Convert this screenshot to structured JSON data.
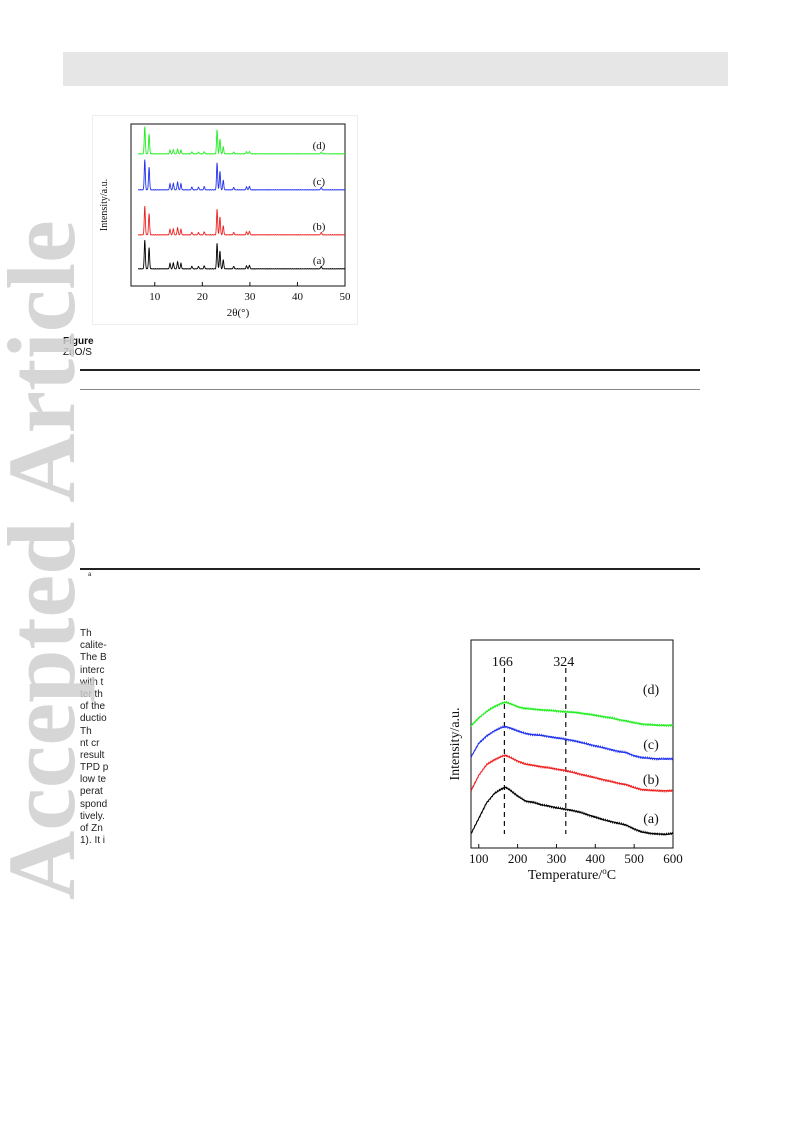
{
  "watermark": "Accepted Article",
  "figure_caption": {
    "label": "Figure",
    "line2": "ZnO/S"
  },
  "footnote_mark": "a",
  "text_fragments": [
    "Th",
    "calite-",
    "The B",
    "interc",
    "with t",
    "ter th",
    "of the",
    "ductio",
    "Th",
    "nt cr",
    "result",
    "TPD p",
    "low te",
    "perat",
    "spond",
    "tively.",
    "of Zn",
    "1). It i"
  ],
  "chart_data": [
    {
      "type": "line",
      "title": "",
      "xlabel": "2θ(°)",
      "ylabel": "Intensity/a.u.",
      "xlim": [
        5,
        50
      ],
      "xticks": [
        "10",
        "20",
        "30",
        "40",
        "50"
      ],
      "grid": false,
      "series": [
        {
          "name": "(a)",
          "color": "#000000",
          "peaks": [
            [
              7.9,
              0.95
            ],
            [
              8.8,
              0.7
            ],
            [
              13.2,
              0.18
            ],
            [
              13.9,
              0.2
            ],
            [
              14.8,
              0.24
            ],
            [
              15.5,
              0.18
            ],
            [
              17.8,
              0.08
            ],
            [
              19.2,
              0.08
            ],
            [
              20.4,
              0.1
            ],
            [
              23.1,
              0.85
            ],
            [
              23.7,
              0.6
            ],
            [
              24.4,
              0.3
            ],
            [
              26.6,
              0.08
            ],
            [
              29.3,
              0.1
            ],
            [
              29.9,
              0.12
            ],
            [
              45.0,
              0.08
            ]
          ]
        },
        {
          "name": "(b)",
          "color": "#ee2222",
          "peaks": [
            [
              7.9,
              0.95
            ],
            [
              8.8,
              0.7
            ],
            [
              13.2,
              0.18
            ],
            [
              13.9,
              0.2
            ],
            [
              14.8,
              0.24
            ],
            [
              15.5,
              0.18
            ],
            [
              17.8,
              0.08
            ],
            [
              19.2,
              0.08
            ],
            [
              20.4,
              0.1
            ],
            [
              23.1,
              0.85
            ],
            [
              23.7,
              0.6
            ],
            [
              24.4,
              0.3
            ],
            [
              26.6,
              0.08
            ],
            [
              29.3,
              0.1
            ],
            [
              29.9,
              0.12
            ],
            [
              45.0,
              0.08
            ]
          ]
        },
        {
          "name": "(c)",
          "color": "#2233ee",
          "peaks": [
            [
              7.9,
              1.0
            ],
            [
              8.8,
              0.75
            ],
            [
              13.2,
              0.2
            ],
            [
              13.9,
              0.22
            ],
            [
              14.8,
              0.26
            ],
            [
              15.5,
              0.2
            ],
            [
              17.8,
              0.09
            ],
            [
              19.2,
              0.09
            ],
            [
              20.4,
              0.11
            ],
            [
              23.1,
              0.9
            ],
            [
              23.7,
              0.62
            ],
            [
              24.4,
              0.32
            ],
            [
              26.6,
              0.08
            ],
            [
              29.3,
              0.1
            ],
            [
              29.9,
              0.12
            ],
            [
              45.0,
              0.08
            ]
          ]
        },
        {
          "name": "(d)",
          "color": "#22ee22",
          "peaks": [
            [
              7.9,
              0.9
            ],
            [
              8.8,
              0.65
            ],
            [
              13.2,
              0.12
            ],
            [
              13.9,
              0.14
            ],
            [
              14.8,
              0.16
            ],
            [
              15.5,
              0.12
            ],
            [
              17.8,
              0.06
            ],
            [
              19.2,
              0.06
            ],
            [
              20.4,
              0.07
            ],
            [
              23.1,
              0.8
            ],
            [
              23.7,
              0.5
            ],
            [
              24.4,
              0.22
            ],
            [
              26.6,
              0.06
            ],
            [
              29.3,
              0.07
            ],
            [
              29.9,
              0.08
            ],
            [
              45.0,
              0.06
            ]
          ]
        }
      ]
    },
    {
      "type": "line",
      "title": "",
      "xlabel": "Temperature/°C",
      "xlabel_unit_sup": "o",
      "ylabel": "Intensity/a.u.",
      "xlim": [
        80,
        600
      ],
      "xticks": [
        "100",
        "200",
        "300",
        "400",
        "500",
        "600"
      ],
      "grid": false,
      "annotations": [
        {
          "x": 166,
          "label": "166"
        },
        {
          "x": 324,
          "label": "324"
        }
      ],
      "series": [
        {
          "name": "(a)",
          "color": "#000000",
          "x": [
            80,
            100,
            120,
            140,
            160,
            170,
            180,
            200,
            220,
            240,
            260,
            280,
            300,
            320,
            340,
            360,
            380,
            400,
            420,
            440,
            460,
            480,
            500,
            520,
            540,
            560,
            580,
            600
          ],
          "y": [
            0.05,
            0.3,
            0.55,
            0.7,
            0.78,
            0.8,
            0.76,
            0.66,
            0.58,
            0.56,
            0.52,
            0.5,
            0.47,
            0.45,
            0.43,
            0.4,
            0.36,
            0.32,
            0.28,
            0.25,
            0.22,
            0.19,
            0.13,
            0.08,
            0.06,
            0.05,
            0.04,
            0.06
          ]
        },
        {
          "name": "(b)",
          "color": "#ee2222",
          "x": [
            80,
            100,
            120,
            140,
            160,
            170,
            180,
            200,
            220,
            240,
            260,
            280,
            300,
            320,
            340,
            360,
            380,
            400,
            420,
            440,
            460,
            480,
            500,
            520,
            540,
            560,
            580,
            600
          ],
          "y": [
            0.1,
            0.35,
            0.52,
            0.6,
            0.66,
            0.67,
            0.64,
            0.58,
            0.53,
            0.51,
            0.49,
            0.47,
            0.45,
            0.43,
            0.4,
            0.37,
            0.34,
            0.31,
            0.28,
            0.25,
            0.22,
            0.2,
            0.15,
            0.12,
            0.11,
            0.1,
            0.1,
            0.1
          ]
        },
        {
          "name": "(c)",
          "color": "#2233ee",
          "x": [
            80,
            100,
            120,
            140,
            160,
            170,
            180,
            200,
            220,
            240,
            260,
            280,
            300,
            320,
            340,
            360,
            380,
            400,
            420,
            440,
            460,
            480,
            500,
            520,
            540,
            560,
            580,
            600
          ],
          "y": [
            0.08,
            0.3,
            0.42,
            0.5,
            0.56,
            0.57,
            0.55,
            0.5,
            0.46,
            0.44,
            0.43,
            0.41,
            0.39,
            0.37,
            0.35,
            0.32,
            0.29,
            0.26,
            0.23,
            0.2,
            0.17,
            0.15,
            0.1,
            0.07,
            0.06,
            0.05,
            0.05,
            0.05
          ]
        },
        {
          "name": "(d)",
          "color": "#22ee22",
          "x": [
            80,
            100,
            120,
            140,
            160,
            170,
            180,
            200,
            220,
            240,
            260,
            280,
            300,
            320,
            340,
            360,
            380,
            400,
            420,
            440,
            460,
            480,
            500,
            520,
            540,
            560,
            580,
            600
          ],
          "y": [
            0.05,
            0.18,
            0.28,
            0.36,
            0.42,
            0.43,
            0.41,
            0.36,
            0.33,
            0.32,
            0.31,
            0.3,
            0.29,
            0.28,
            0.27,
            0.26,
            0.24,
            0.22,
            0.2,
            0.18,
            0.15,
            0.13,
            0.1,
            0.08,
            0.07,
            0.06,
            0.06,
            0.06
          ]
        }
      ]
    }
  ]
}
